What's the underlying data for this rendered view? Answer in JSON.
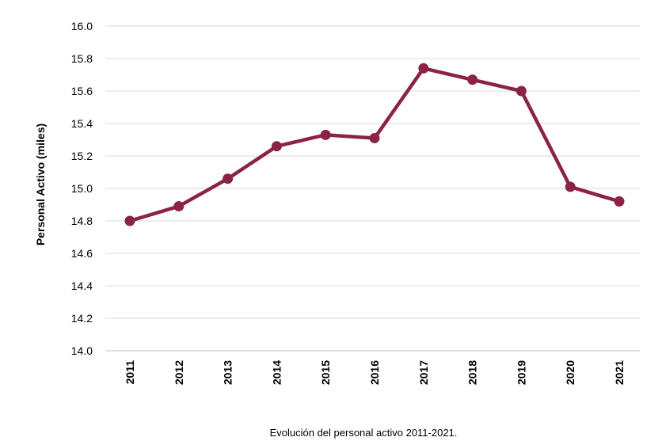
{
  "chart_data": {
    "type": "line",
    "title": "",
    "caption": "Evolución del personal activo 2011-2021.",
    "xlabel": "",
    "ylabel": "Personal Activo (miles)",
    "ylim": [
      14.0,
      16.0
    ],
    "ytick_step": 0.2,
    "grid": "horizontal",
    "legend": "none",
    "categories": [
      "2011",
      "2012",
      "2013",
      "2014",
      "2015",
      "2016",
      "2017",
      "2018",
      "2019",
      "2020",
      "2021"
    ],
    "series": [
      {
        "values": [
          14.8,
          14.89,
          15.06,
          15.26,
          15.33,
          15.31,
          15.74,
          15.67,
          15.6,
          15.01,
          14.92
        ],
        "color": "#8B2346"
      }
    ],
    "colors": {
      "grid": "#d9d9d9",
      "line": "#8B2346"
    }
  }
}
